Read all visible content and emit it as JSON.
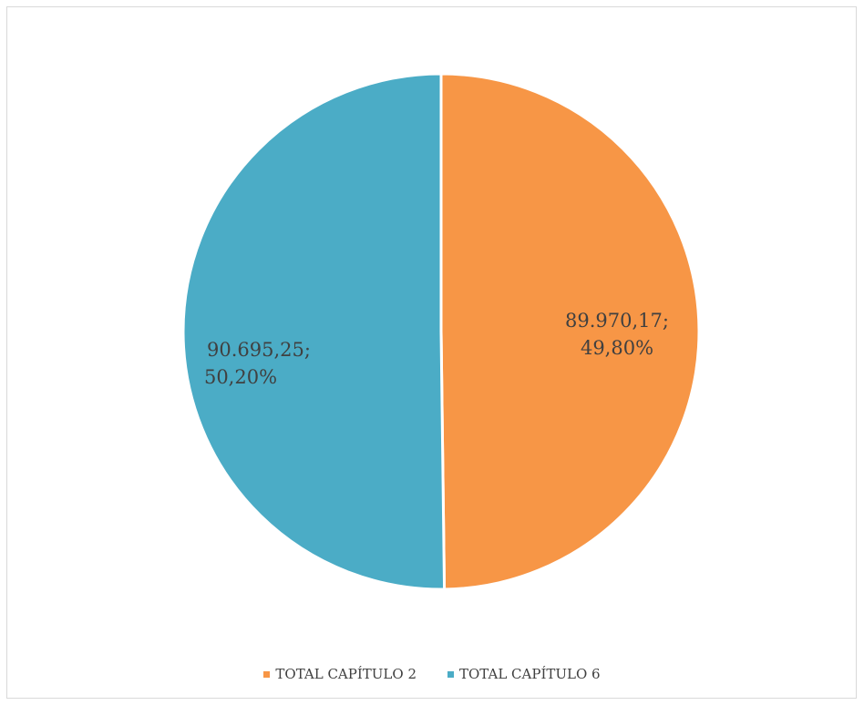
{
  "chart_data": {
    "type": "pie",
    "title": "",
    "slices": [
      {
        "name": "TOTAL CAPÍTULO 2",
        "value": 89970.17,
        "label": "89.970,17;",
        "percent": "49,80%",
        "color": "#F79646"
      },
      {
        "name": "TOTAL CAPÍTULO 6",
        "value": 90695.25,
        "label": "90.695,25;",
        "percent": "50,20%",
        "color": "#4BACC6"
      }
    ],
    "legend_position": "bottom"
  }
}
